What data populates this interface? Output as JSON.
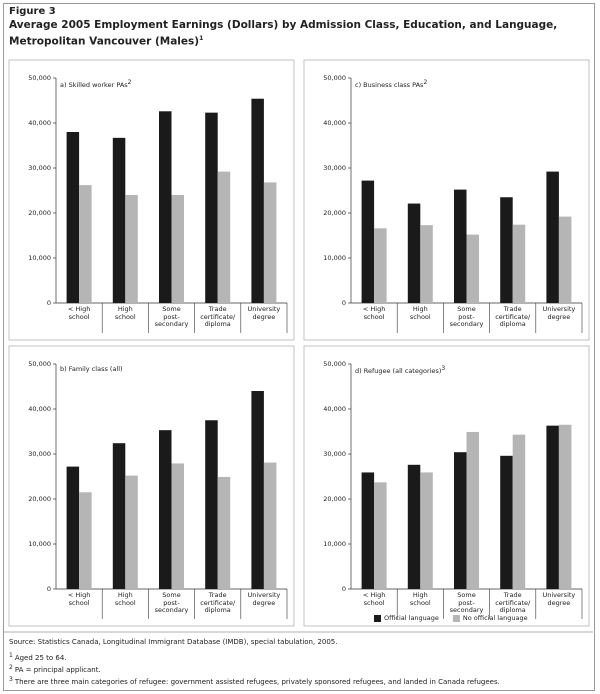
{
  "figure": {
    "label": "Figure 3",
    "title": "Average 2005 Employment Earnings (Dollars) by Admission Class, Education, and Language, Metropolitan Vancouver (Males)",
    "title_superscript": "1"
  },
  "source": "Source: Statistics Canada, Longitudinal Immigrant Database (IMDB), special tabulation, 2005.",
  "notes": [
    {
      "marker": "1",
      "text": "Aged 25 to 64."
    },
    {
      "marker": "2",
      "text": "PA = principal applicant."
    },
    {
      "marker": "3",
      "text": "There are three main categories of refugee: government assisted refugees, privately sponsored refugees, and landed in Canada refugees."
    }
  ],
  "chart_data": [
    {
      "type": "bar",
      "title": "a) Skilled worker PAs",
      "title_superscript": "2",
      "categories": [
        "< High\nschool",
        "High\nschool",
        "Some\npost-\nsecondary",
        "Trade\ncertificate/\ndiploma",
        "University\ndegree"
      ],
      "series": [
        {
          "name": "Official language",
          "color": "#1a1a1a",
          "values": [
            38000,
            36700,
            42600,
            42300,
            45400
          ]
        },
        {
          "name": "No official language",
          "color": "#b5b5b5",
          "values": [
            26200,
            24000,
            24000,
            29200,
            26800
          ]
        }
      ],
      "ylim": [
        0,
        50000
      ],
      "yticks": [
        0,
        {
          "value": 10000,
          "label": "10,000"
        },
        {
          "value": 20000,
          "label": "20,000"
        },
        {
          "value": 30000,
          "label": "30,000"
        },
        {
          "value": 40000,
          "label": "40,000"
        },
        {
          "value": 50000,
          "label": "50,000"
        }
      ]
    },
    {
      "type": "bar",
      "title": "c) Business class PAs",
      "title_superscript": "2",
      "categories": [
        "< High\nschool",
        "High\nschool",
        "Some\npost-\nsecondary",
        "Trade\ncertificate/\ndiploma",
        "University\ndegree"
      ],
      "series": [
        {
          "name": "Official language",
          "color": "#1a1a1a",
          "values": [
            27200,
            22100,
            25200,
            23500,
            29200
          ]
        },
        {
          "name": "No official language",
          "color": "#b5b5b5",
          "values": [
            16600,
            17300,
            15200,
            17400,
            19200
          ]
        }
      ],
      "ylim": [
        0,
        50000
      ],
      "yticks": [
        0,
        {
          "value": 10000,
          "label": "10,000"
        },
        {
          "value": 20000,
          "label": "20,000"
        },
        {
          "value": 30000,
          "label": "30,000"
        },
        {
          "value": 40000,
          "label": "40,000"
        },
        {
          "value": 50000,
          "label": "50,000"
        }
      ]
    },
    {
      "type": "bar",
      "title": "b) Family class (all)",
      "categories": [
        "< High\nschool",
        "High\nschool",
        "Some\npost-\nsecondary",
        "Trade\ncertificate/\ndiploma",
        "University\ndegree"
      ],
      "series": [
        {
          "name": "Official language",
          "color": "#1a1a1a",
          "values": [
            27200,
            32400,
            35300,
            37500,
            44000
          ]
        },
        {
          "name": "No official language",
          "color": "#b5b5b5",
          "values": [
            21500,
            25200,
            27900,
            24900,
            28100
          ]
        }
      ],
      "ylim": [
        0,
        50000
      ],
      "yticks": [
        0,
        {
          "value": 10000,
          "label": "10,000"
        },
        {
          "value": 20000,
          "label": "20,000"
        },
        {
          "value": 30000,
          "label": "30,000"
        },
        {
          "value": 40000,
          "label": "40,000"
        },
        {
          "value": 50000,
          "label": "50,000"
        }
      ]
    },
    {
      "type": "bar",
      "title": "d) Refugee (all categories)",
      "title_superscript": "3",
      "categories": [
        "< High\nschool",
        "High\nschool",
        "Some\npost-\nsecondary",
        "Trade\ncertificate/\ndiploma",
        "University\ndegree"
      ],
      "series": [
        {
          "name": "Official language",
          "color": "#1a1a1a",
          "values": [
            25900,
            27600,
            30400,
            29600,
            36300
          ]
        },
        {
          "name": "No official language",
          "color": "#b5b5b5",
          "values": [
            23700,
            25900,
            34900,
            34300,
            36500
          ]
        }
      ],
      "ylim": [
        0,
        50000
      ],
      "yticks": [
        0,
        {
          "value": 10000,
          "label": "10,000"
        },
        {
          "value": 20000,
          "label": "20,000"
        },
        {
          "value": 30000,
          "label": "30,000"
        },
        {
          "value": 40000,
          "label": "40,000"
        },
        {
          "value": 50000,
          "label": "50,000"
        }
      ],
      "legend": "bottom"
    }
  ]
}
